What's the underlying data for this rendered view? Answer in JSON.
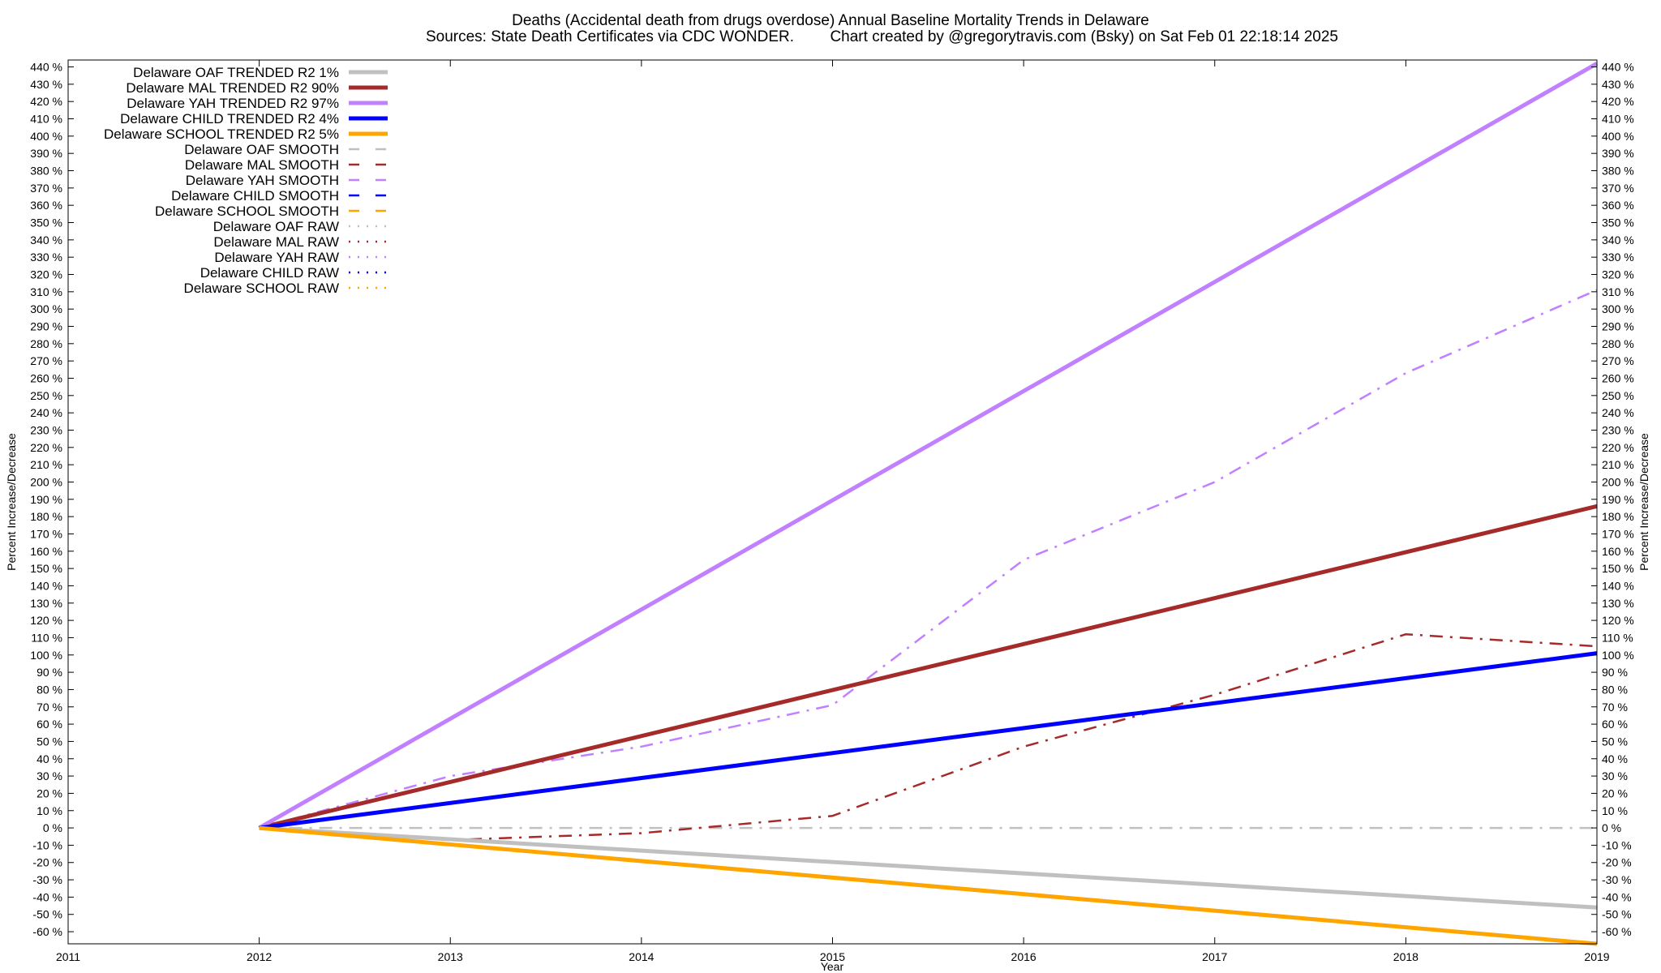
{
  "chart_data": {
    "type": "line",
    "title": "Deaths (Accidental death from drugs overdose)  Annual Baseline Mortality Trends in Delaware",
    "subtitle_left": "Sources: State Death Certificates via CDC WONDER.",
    "subtitle_right": "Chart created by @gregorytravis.com (Bsky) on Sat Feb 01 22:18:14 2025",
    "xlabel": "Year",
    "ylabel": "Percent Increase/Decrease",
    "y2label": "Percent Increase/Decrease",
    "xlim": [
      2011,
      2019
    ],
    "ylim": [
      -67,
      444
    ],
    "x_ticks": [
      2011,
      2012,
      2013,
      2014,
      2015,
      2016,
      2017,
      2018,
      2019
    ],
    "y_tick_min": -60,
    "y_tick_max": 440,
    "y_tick_step": 10,
    "y_tick_suffix": " %",
    "legend_position": "top-left",
    "grid": false,
    "series": [
      {
        "name": "Delaware OAF TRENDED R2  1%",
        "style": "solid",
        "color": "#c0c0c0",
        "x": [
          2012,
          2019
        ],
        "y": [
          0,
          -46
        ]
      },
      {
        "name": "Delaware MAL TRENDED R2  90%",
        "style": "solid",
        "color": "#a52a2a",
        "x": [
          2012,
          2019
        ],
        "y": [
          0,
          186
        ]
      },
      {
        "name": "Delaware YAH TRENDED R2  97%",
        "style": "solid",
        "color": "#c080ff",
        "x": [
          2012,
          2019
        ],
        "y": [
          0,
          442
        ]
      },
      {
        "name": "Delaware CHILD TRENDED R2  4%",
        "style": "solid",
        "color": "#0000ff",
        "x": [
          2012,
          2019
        ],
        "y": [
          0,
          101
        ]
      },
      {
        "name": "Delaware SCHOOL TRENDED R2  5%",
        "style": "solid",
        "color": "#ffa500",
        "x": [
          2012,
          2019
        ],
        "y": [
          0,
          -67
        ]
      },
      {
        "name": "Delaware OAF SMOOTH",
        "style": "dashdot",
        "color": "#c0c0c0",
        "x": [
          2012,
          2013,
          2014,
          2015,
          2016,
          2017,
          2018,
          2019
        ],
        "y": [
          0,
          0,
          0,
          0,
          0,
          0,
          0,
          0
        ]
      },
      {
        "name": "Delaware MAL SMOOTH",
        "style": "dashdot",
        "color": "#a52a2a",
        "x": [
          2012,
          2013,
          2014,
          2015,
          2016,
          2017,
          2018,
          2019
        ],
        "y": [
          0,
          -7,
          -3,
          7,
          47,
          77,
          112,
          105
        ]
      },
      {
        "name": "Delaware YAH SMOOTH",
        "style": "dashdot",
        "color": "#c080ff",
        "x": [
          2012,
          2013,
          2014,
          2015,
          2016,
          2017,
          2018,
          2019
        ],
        "y": [
          0,
          30,
          47,
          71,
          155,
          200,
          263,
          311
        ]
      },
      {
        "name": "Delaware CHILD SMOOTH",
        "style": "dashdot",
        "color": "#0000ff",
        "x": [],
        "y": []
      },
      {
        "name": "Delaware SCHOOL SMOOTH",
        "style": "dashdot",
        "color": "#ffa500",
        "x": [],
        "y": []
      },
      {
        "name": "Delaware OAF RAW",
        "style": "dotted",
        "color": "#c0c0c0",
        "x": [],
        "y": []
      },
      {
        "name": "Delaware MAL RAW",
        "style": "dotted",
        "color": "#a52a2a",
        "x": [],
        "y": []
      },
      {
        "name": "Delaware YAH RAW",
        "style": "dotted",
        "color": "#c080ff",
        "x": [],
        "y": []
      },
      {
        "name": "Delaware CHILD RAW",
        "style": "dotted",
        "color": "#0000ff",
        "x": [],
        "y": []
      },
      {
        "name": "Delaware SCHOOL RAW",
        "style": "dotted",
        "color": "#ffa500",
        "x": [],
        "y": []
      }
    ]
  }
}
